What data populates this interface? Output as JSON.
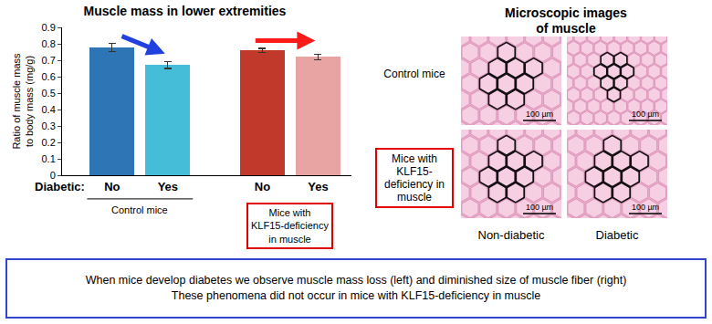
{
  "chart_data": {
    "type": "bar",
    "title": "Muscle mass in lower extremities",
    "y_label": "Ratio of muscle mass to body mass (mg/g)",
    "x_label": "Diabetic:",
    "categories": [
      "No",
      "Yes",
      "No",
      "Yes"
    ],
    "values": [
      0.78,
      0.67,
      0.76,
      0.72
    ],
    "errors": [
      0.025,
      0.02,
      0.012,
      0.015
    ],
    "colors": [
      "#2e75b6",
      "#45bcd8",
      "#c0392b",
      "#e8a3a3"
    ],
    "groups": [
      {
        "label": "Control mice",
        "categories": [
          "No",
          "Yes"
        ]
      },
      {
        "label": "Mice with KLF15-deficiency in muscle",
        "categories": [
          "No",
          "Yes"
        ]
      }
    ],
    "ylim": [
      0,
      0.9
    ],
    "yticks": [
      0,
      0.1,
      0.2,
      0.3,
      0.4,
      0.5,
      0.6,
      0.7,
      0.8,
      0.9
    ],
    "grid": false
  },
  "microscopy": {
    "title": "Microscopic images of muscle",
    "rows": [
      "Control mice",
      "Mice with KLF15-deficiency in muscle"
    ],
    "columns": [
      "Non-diabetic",
      "Diabetic"
    ],
    "scale_bar": "100 µm"
  },
  "caption": [
    "When mice develop diabetes we observe muscle mass loss (left) and diminished size of muscle fiber (right)",
    "These phenomena did not occur in mice with KLF15-deficiency in muscle"
  ]
}
